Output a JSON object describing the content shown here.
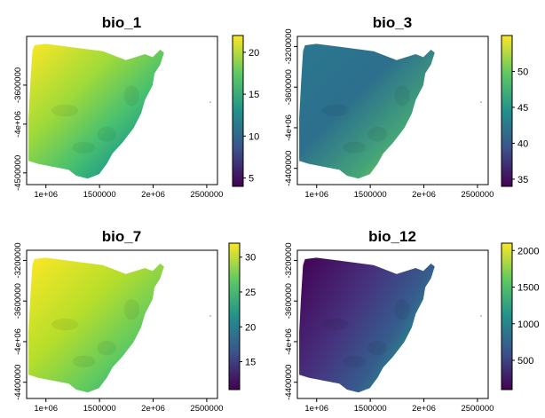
{
  "chart_data": [
    {
      "type": "heatmap",
      "title": "bio_1",
      "x_ticks": [
        "1e+06",
        "1500000",
        "2e+06",
        "2500000"
      ],
      "x_tick_values": [
        1000000,
        1500000,
        2000000,
        2500000
      ],
      "y_ticks": [
        "-3600000",
        "-4e+06",
        "-4500000"
      ],
      "y_tick_values": [
        -3600000,
        -4000000,
        -4500000
      ],
      "xlim": [
        820000,
        2600000
      ],
      "ylim": [
        -4620000,
        -3100000
      ],
      "colorbar": {
        "ticks": [
          5,
          10,
          15,
          20
        ],
        "range": [
          4,
          22
        ]
      },
      "colors": [
        "#fde725",
        "#5ec962",
        "#21918c",
        "#3b528b",
        "#440154"
      ]
    },
    {
      "type": "heatmap",
      "title": "bio_3",
      "x_ticks": [
        "1e+06",
        "1500000",
        "2e+06",
        "2500000"
      ],
      "x_tick_values": [
        1000000,
        1500000,
        2000000,
        2500000
      ],
      "y_ticks": [
        "-3200000",
        "-3600000",
        "-4e+06",
        "-4400000"
      ],
      "y_tick_values": [
        -3200000,
        -3600000,
        -4000000,
        -4400000
      ],
      "xlim": [
        820000,
        2600000
      ],
      "ylim": [
        -4560000,
        -3100000
      ],
      "colorbar": {
        "ticks": [
          35,
          40,
          45,
          50
        ],
        "range": [
          34,
          55
        ]
      },
      "colors": [
        "#fde725",
        "#5ec962",
        "#21918c",
        "#3b528b",
        "#440154"
      ]
    },
    {
      "type": "heatmap",
      "title": "bio_7",
      "x_ticks": [
        "1e+06",
        "1500000",
        "2e+06",
        "2500000"
      ],
      "x_tick_values": [
        1000000,
        1500000,
        2000000,
        2500000
      ],
      "y_ticks": [
        "-3200000",
        "-3600000",
        "-4e+06",
        "-4400000"
      ],
      "y_tick_values": [
        -3200000,
        -3600000,
        -4000000,
        -4400000
      ],
      "xlim": [
        820000,
        2600000
      ],
      "ylim": [
        -4560000,
        -3100000
      ],
      "colorbar": {
        "ticks": [
          15,
          20,
          25,
          30
        ],
        "range": [
          11,
          32
        ]
      },
      "colors": [
        "#fde725",
        "#5ec962",
        "#21918c",
        "#3b528b",
        "#440154"
      ]
    },
    {
      "type": "heatmap",
      "title": "bio_12",
      "x_ticks": [
        "1e+06",
        "1500000",
        "2e+06",
        "2500000"
      ],
      "x_tick_values": [
        1000000,
        1500000,
        2000000,
        2500000
      ],
      "y_ticks": [
        "-3200000",
        "-3600000",
        "-4e+06",
        "-4400000"
      ],
      "y_tick_values": [
        -3200000,
        -3600000,
        -4000000,
        -4400000
      ],
      "xlim": [
        820000,
        2600000
      ],
      "ylim": [
        -4560000,
        -3100000
      ],
      "colorbar": {
        "ticks": [
          500,
          1000,
          1500,
          2000
        ],
        "range": [
          100,
          2100
        ]
      },
      "colors": [
        "#fde725",
        "#5ec962",
        "#21918c",
        "#3b528b",
        "#440154"
      ]
    }
  ]
}
